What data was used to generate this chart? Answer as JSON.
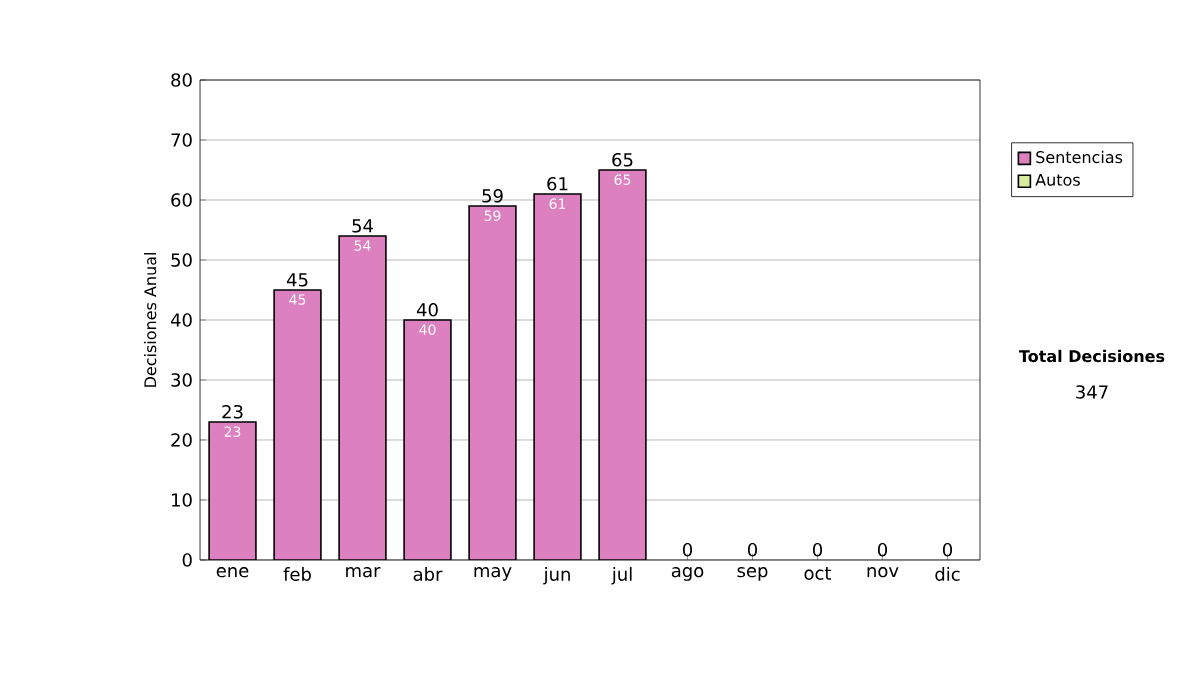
{
  "chart_data": {
    "type": "bar",
    "stacked": true,
    "ylabel": "Decisiones Anual",
    "categories": [
      "ene",
      "feb",
      "mar",
      "abr",
      "may",
      "jun",
      "jul",
      "ago",
      "sep",
      "oct",
      "nov",
      "dic"
    ],
    "series": [
      {
        "name": "Sentencias",
        "color": "#dd80c0",
        "values": [
          23,
          45,
          54,
          40,
          59,
          61,
          65,
          0,
          0,
          0,
          0,
          0
        ],
        "value_labels": [
          "23",
          "45",
          "54",
          "40",
          "59",
          "61",
          "65",
          null,
          null,
          null,
          null,
          null
        ]
      },
      {
        "name": "Autos",
        "color": "#d8eca0",
        "values": [
          0,
          0,
          0,
          0,
          0,
          0,
          0,
          0,
          0,
          0,
          0,
          0
        ]
      }
    ],
    "totals": [
      "23",
      "45",
      "54",
      "40",
      "59",
      "61",
      "65",
      "0",
      "0",
      "0",
      "0",
      "0"
    ],
    "ylim": [
      0,
      80
    ],
    "yticks": [
      0,
      10,
      20,
      30,
      40,
      50,
      60,
      70,
      80
    ],
    "grid": "y",
    "legend": "right",
    "annotations": [
      "Total Decisiones",
      "347"
    ]
  }
}
